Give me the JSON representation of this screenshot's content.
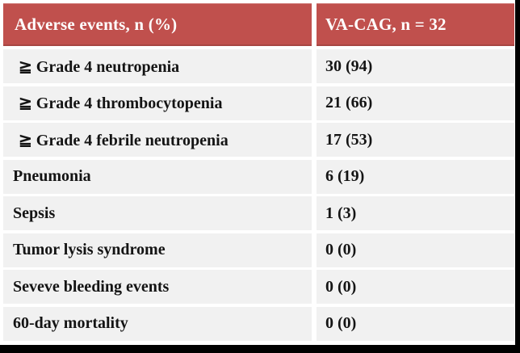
{
  "colors": {
    "header_bg": "#C0504D",
    "header_text": "#FFFFFF",
    "row_bg": "#F1F1F1",
    "body_text": "#141414",
    "frame": "#000000"
  },
  "table": {
    "header": {
      "label_col": "Adverse events, n (%)",
      "value_col": "VA-CAG, n = 32"
    },
    "rows": [
      {
        "label": "≧ Grade 4 neutropenia",
        "value": "30 (94)"
      },
      {
        "label": "≧ Grade 4 thrombocytopenia",
        "value": "21 (66)"
      },
      {
        "label": "≧ Grade 4 febrile neutropenia",
        "value": "17 (53)"
      },
      {
        "label": "Pneumonia",
        "value": "6 (19)"
      },
      {
        "label": "Sepsis",
        "value": "1 (3)"
      },
      {
        "label": "Tumor lysis syndrome",
        "value": "0 (0)"
      },
      {
        "label": "Seveve bleeding events",
        "value": "0 (0)"
      },
      {
        "label": "60-day mortality",
        "value": "0 (0)"
      }
    ]
  },
  "chart_data": {
    "type": "table",
    "title": "Adverse events, n (%)",
    "columns": [
      "Adverse events, n (%)",
      "VA-CAG, n = 32"
    ],
    "categories": [
      "≧ Grade 4 neutropenia",
      "≧ Grade 4 thrombocytopenia",
      "≧ Grade 4 febrile neutropenia",
      "Pneumonia",
      "Sepsis",
      "Tumor lysis syndrome",
      "Seveve bleeding events",
      "60-day mortality"
    ],
    "counts": [
      30,
      21,
      17,
      6,
      1,
      0,
      0,
      0
    ],
    "percents": [
      94,
      66,
      53,
      19,
      3,
      0,
      0,
      0
    ],
    "n_total": 32
  }
}
